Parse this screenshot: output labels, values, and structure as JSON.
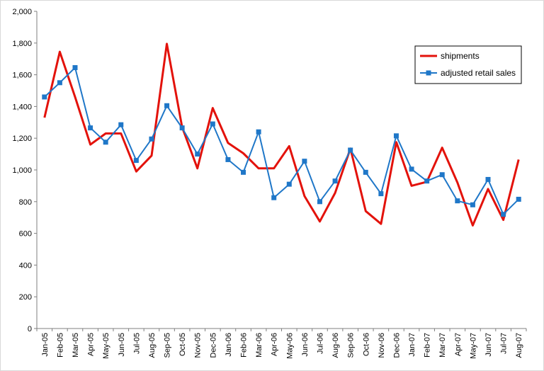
{
  "chart_data": {
    "type": "line",
    "title": "",
    "xlabel": "",
    "ylabel": "",
    "ylim": [
      0,
      2000
    ],
    "yticks": [
      0,
      200,
      400,
      600,
      800,
      1000,
      1200,
      1400,
      1600,
      1800,
      2000
    ],
    "ytick_labels": [
      "0",
      "200",
      "400",
      "600",
      "800",
      "1,000",
      "1,200",
      "1,400",
      "1,600",
      "1,800",
      "2,000"
    ],
    "grid": false,
    "legend_position": "top-right",
    "categories": [
      "Jan-05",
      "Feb-05",
      "Mar-05",
      "Apr-05",
      "May-05",
      "Jun-05",
      "Jul-05",
      "Aug-05",
      "Sep-05",
      "Oct-05",
      "Nov-05",
      "Dec-05",
      "Jan-06",
      "Feb-06",
      "Mar-06",
      "Apr-06",
      "May-06",
      "Jun-06",
      "Jul-06",
      "Aug-06",
      "Sep-06",
      "Oct-06",
      "Nov-06",
      "Dec-06",
      "Jan-07",
      "Feb-07",
      "Mar-07",
      "Apr-07",
      "May-07",
      "Jun-07",
      "Jul-07",
      "Aug-07"
    ],
    "series": [
      {
        "name": "shipments",
        "color": "#e3120b",
        "marker": "none",
        "values": [
          1330,
          1745,
          1460,
          1160,
          1230,
          1230,
          990,
          1090,
          1795,
          1270,
          1010,
          1390,
          1170,
          1105,
          1010,
          1010,
          1150,
          835,
          675,
          855,
          1135,
          740,
          660,
          1175,
          900,
          925,
          1140,
          920,
          650,
          880,
          685,
          1065
        ]
      },
      {
        "name": "adjusted retail sales",
        "color": "#1f77c8",
        "marker": "square",
        "values": [
          1460,
          1550,
          1645,
          1265,
          1175,
          1285,
          1060,
          1195,
          1405,
          1265,
          1100,
          1290,
          1065,
          985,
          1240,
          825,
          910,
          1055,
          800,
          930,
          1125,
          985,
          850,
          1215,
          1005,
          930,
          970,
          805,
          780,
          940,
          720,
          815
        ]
      }
    ]
  }
}
